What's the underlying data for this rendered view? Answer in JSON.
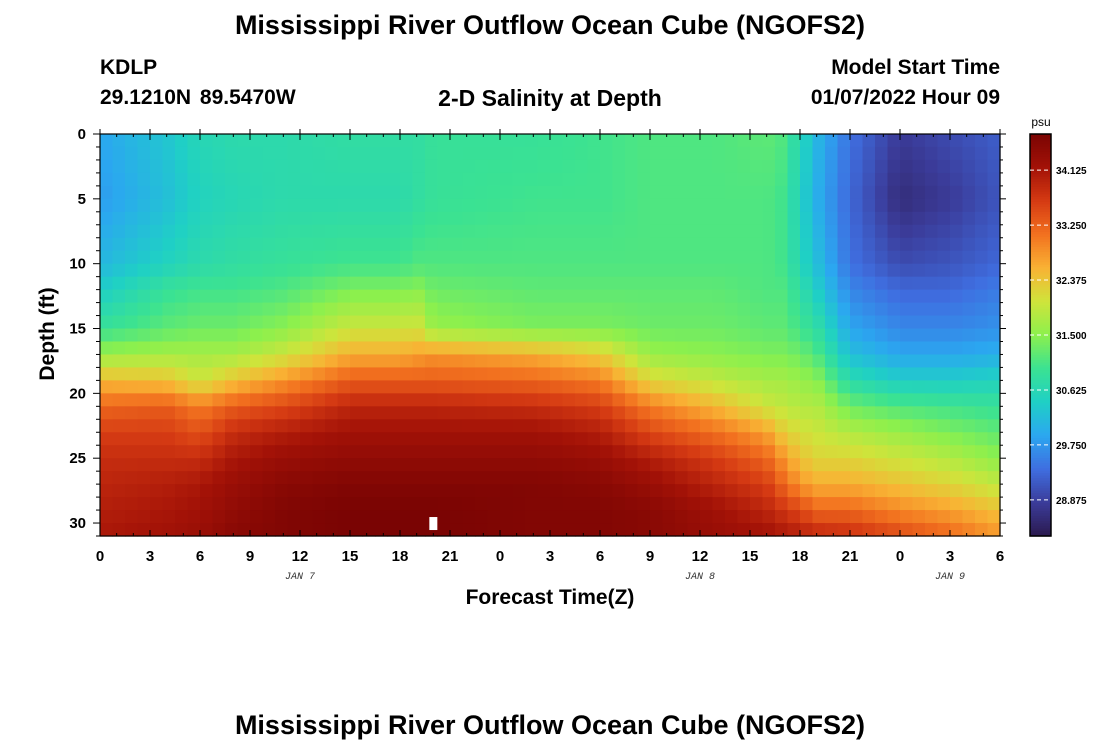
{
  "page": {
    "title_top": "Mississippi River Outflow Ocean Cube (NGOFS2)",
    "title_bottom": "Mississippi River Outflow Ocean Cube (NGOFS2)",
    "station": "KDLP",
    "coordinates": "29.1210N  89.5470W",
    "subtitle": "2-D Salinity at Depth",
    "model_start_label": "Model Start Time",
    "model_start_value": "01/07/2022 Hour 09"
  },
  "chart_data": {
    "type": "heatmap",
    "title": "2-D Salinity at Depth",
    "xlabel": "Forecast Time(Z)",
    "ylabel": "Depth (ft)",
    "x_range_hours": [
      0,
      54
    ],
    "x_tick_step_hours": 3,
    "x_tick_labels": [
      "0",
      "3",
      "6",
      "9",
      "12",
      "15",
      "18",
      "21",
      "0",
      "3",
      "6",
      "9",
      "12",
      "15",
      "18",
      "21",
      "0",
      "3",
      "6"
    ],
    "date_labels": [
      {
        "hour": 12,
        "label": "JAN 7"
      },
      {
        "hour": 36,
        "label": "JAN 8"
      },
      {
        "hour": 51,
        "label": "JAN 9"
      }
    ],
    "y_range_ft": [
      0,
      31
    ],
    "y_inverted": true,
    "y_tick_labels": [
      "0",
      "5",
      "10",
      "15",
      "20",
      "25",
      "30"
    ],
    "colorbar": {
      "unit": "psu",
      "range": [
        28.3,
        34.7
      ],
      "tick_labels": [
        "34.125",
        "33.250",
        "32.375",
        "31.500",
        "30.625",
        "29.750",
        "28.875"
      ],
      "tick_values": [
        34.125,
        33.25,
        32.375,
        31.5,
        30.625,
        29.75,
        28.875
      ],
      "colors": [
        "#2b1a4f",
        "#3b3c9a",
        "#3f6ee0",
        "#2ba7f0",
        "#1fd0c5",
        "#3be292",
        "#8cf04d",
        "#cfe43b",
        "#f9b234",
        "#f2711f",
        "#d53a13",
        "#a31207",
        "#7a0403"
      ]
    },
    "salinity_profiles": {
      "depth_ft": [
        0,
        5,
        10,
        12,
        15,
        17,
        19,
        21,
        23,
        25,
        27,
        29,
        31
      ],
      "times": [
        {
          "hour": 0,
          "values": [
            29.9,
            29.8,
            30.1,
            30.4,
            30.9,
            31.6,
            32.5,
            33.2,
            33.6,
            33.8,
            33.9,
            34.0,
            34.1
          ]
        },
        {
          "hour": 4,
          "values": [
            30.3,
            30.2,
            30.5,
            30.9,
            31.2,
            31.7,
            32.4,
            33.3,
            33.6,
            33.8,
            34.0,
            34.1,
            34.2
          ]
        },
        {
          "hour": 6,
          "values": [
            30.6,
            30.5,
            30.7,
            31.0,
            31.3,
            31.7,
            32.0,
            33.0,
            33.4,
            33.8,
            34.1,
            34.2,
            34.3
          ]
        },
        {
          "hour": 8,
          "values": [
            30.7,
            30.6,
            30.8,
            31.0,
            31.3,
            31.7,
            32.4,
            33.3,
            33.8,
            34.1,
            34.3,
            34.4,
            34.5
          ]
        },
        {
          "hour": 11,
          "values": [
            30.7,
            30.7,
            30.9,
            31.1,
            31.5,
            32.0,
            32.8,
            33.5,
            34.0,
            34.3,
            34.5,
            34.6,
            34.6
          ]
        },
        {
          "hour": 15,
          "values": [
            30.8,
            30.7,
            31.0,
            31.4,
            32.0,
            32.6,
            33.3,
            33.9,
            34.2,
            34.4,
            34.6,
            34.7,
            34.7
          ]
        },
        {
          "hour": 18,
          "values": [
            30.8,
            30.7,
            31.0,
            31.4,
            32.0,
            32.6,
            33.3,
            33.9,
            34.2,
            34.4,
            34.6,
            34.7,
            34.7
          ]
        },
        {
          "hour": 19,
          "values": [
            30.8,
            30.8,
            31.1,
            31.5,
            32.1,
            32.7,
            33.3,
            33.9,
            34.2,
            34.4,
            34.6,
            34.7,
            34.7
          ]
        },
        {
          "hour": 20,
          "values": [
            30.9,
            30.9,
            31.1,
            31.3,
            31.6,
            32.8,
            33.3,
            33.9,
            34.2,
            34.4,
            34.6,
            34.7,
            34.7
          ]
        },
        {
          "hour": 26,
          "values": [
            30.9,
            31.0,
            31.1,
            31.2,
            31.4,
            32.6,
            33.2,
            33.8,
            34.2,
            34.4,
            34.6,
            34.6,
            34.6
          ]
        },
        {
          "hour": 30,
          "values": [
            31.0,
            31.0,
            31.1,
            31.2,
            31.4,
            32.3,
            33.0,
            33.6,
            34.0,
            34.3,
            34.5,
            34.6,
            34.6
          ]
        },
        {
          "hour": 33,
          "values": [
            31.1,
            31.1,
            31.1,
            31.2,
            31.3,
            31.6,
            32.2,
            33.0,
            33.5,
            34.0,
            34.3,
            34.5,
            34.5
          ]
        },
        {
          "hour": 37,
          "values": [
            31.1,
            31.1,
            31.1,
            31.2,
            31.3,
            31.5,
            31.9,
            32.5,
            33.1,
            33.6,
            33.9,
            34.2,
            34.3
          ]
        },
        {
          "hour": 40,
          "values": [
            31.2,
            31.1,
            31.1,
            31.1,
            31.2,
            31.4,
            31.7,
            32.0,
            32.7,
            33.2,
            33.6,
            33.9,
            34.2
          ]
        },
        {
          "hour": 41,
          "values": [
            31.1,
            31.0,
            31.0,
            31.1,
            31.2,
            31.4,
            31.7,
            31.9,
            32.3,
            32.8,
            33.2,
            33.7,
            34.1
          ]
        },
        {
          "hour": 42,
          "values": [
            30.6,
            30.5,
            30.6,
            30.8,
            31.0,
            31.3,
            31.6,
            31.8,
            32.1,
            32.4,
            32.8,
            33.5,
            34.0
          ]
        },
        {
          "hour": 43,
          "values": [
            30.1,
            30.0,
            30.2,
            30.4,
            30.8,
            31.1,
            31.5,
            31.8,
            32.0,
            32.2,
            32.6,
            33.2,
            33.9
          ]
        },
        {
          "hour": 45,
          "values": [
            29.4,
            29.3,
            29.4,
            29.6,
            29.9,
            30.2,
            30.7,
            31.3,
            31.8,
            32.2,
            32.6,
            33.2,
            33.8
          ]
        },
        {
          "hour": 48,
          "values": [
            28.8,
            28.6,
            29.0,
            29.3,
            29.6,
            29.9,
            30.4,
            31.1,
            31.6,
            32.0,
            32.4,
            32.9,
            33.5
          ]
        },
        {
          "hour": 51,
          "values": [
            29.0,
            28.8,
            29.1,
            29.3,
            29.6,
            29.9,
            30.4,
            31.0,
            31.4,
            31.8,
            32.2,
            32.7,
            33.2
          ]
        },
        {
          "hour": 54,
          "values": [
            29.2,
            29.1,
            29.3,
            29.5,
            29.7,
            30.0,
            30.5,
            30.9,
            31.2,
            31.5,
            31.9,
            32.4,
            32.8
          ]
        }
      ]
    },
    "marker": {
      "hour": 20,
      "depth_ft": 30,
      "color": "#ffffff"
    }
  }
}
